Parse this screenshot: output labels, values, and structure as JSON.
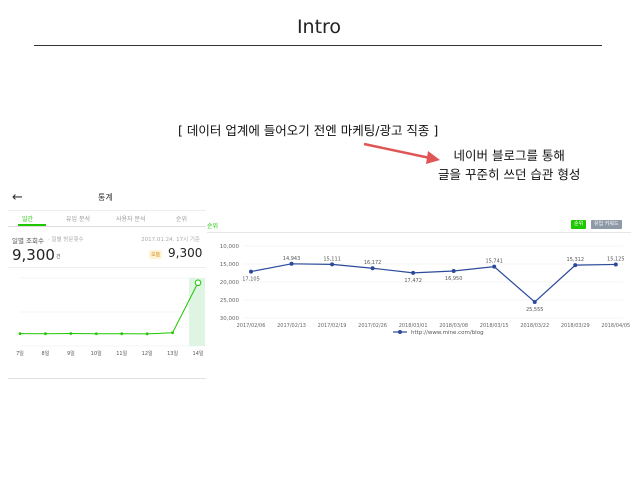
{
  "slide": {
    "title": "Intro",
    "caption": "[ 데이터 업계에 들어오기 전엔 마케팅/광고 직종 ]",
    "note_line1": "네이버 블로그를 통해",
    "note_line2": "글을 꾸준히 쓰던 습관 형성"
  },
  "phone": {
    "header_title": "통계",
    "tabs": [
      "일간",
      "유입 분석",
      "사용자 분석",
      "순위"
    ],
    "metric_label": "일별 조회수",
    "metric_sublabel": "· 일별 방문횟수",
    "date": "2017.01.24. 17시 기준",
    "value": "9,300",
    "unit": "건",
    "badge": "오늘",
    "value_today": "9,300",
    "chart_data": {
      "type": "line",
      "categories": [
        "7일",
        "8일",
        "9일",
        "10일",
        "11일",
        "12일",
        "13일",
        "14일"
      ],
      "values": [
        1820,
        1810,
        1830,
        1800,
        1810,
        1790,
        1950,
        9300
      ],
      "ylim": [
        0,
        10000
      ],
      "grid": true,
      "accent": "#1ec800",
      "highlight_color": "#dff5e3"
    }
  },
  "desktop": {
    "label": "순위",
    "btn_primary": "순위",
    "btn_secondary": "유입 키워드",
    "chart_data": {
      "type": "line",
      "y_ticks": [
        "10,000",
        "15,000",
        "20,000",
        "25,000",
        "30,000"
      ],
      "categories": [
        "2017/02/06",
        "2017/02/13",
        "2017/02/19",
        "2017/02/26",
        "2018/03/01",
        "2018/03/08",
        "2018/03/15",
        "2018/03/22",
        "2018/03/29",
        "2018/04/05"
      ],
      "values": [
        17105,
        14943,
        15111,
        16172,
        17472,
        16950,
        15741,
        25555,
        15312,
        15125
      ],
      "data_labels": [
        "17,105",
        "14,943",
        "15,111",
        "16,172",
        "17,472",
        "16,950",
        "15,741",
        "25,555",
        "15,312",
        "15,125"
      ],
      "ylim": [
        10000,
        30000
      ],
      "y_reversed": true,
      "legend": "http://www.mine.com/blog",
      "legend_position": "bottom",
      "color": "#2b4a9a"
    }
  }
}
